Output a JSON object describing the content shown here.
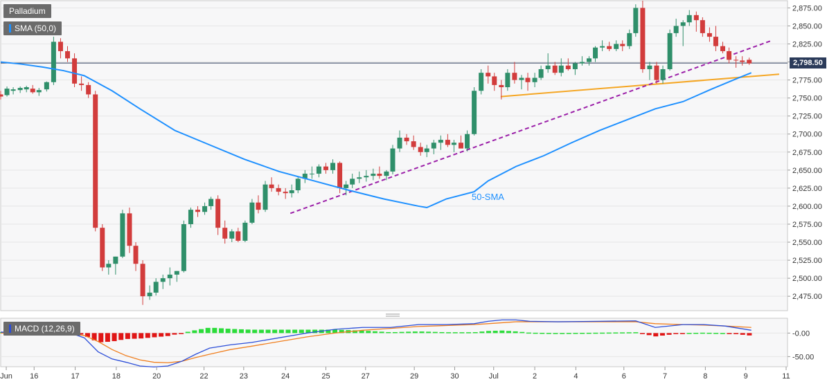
{
  "legend": {
    "instrument": "Palladium",
    "sma": "SMA (50,0)",
    "macd": "MACD (12,26,9)",
    "sma_color": "#1e90ff",
    "macd_color": "#2b4dd8"
  },
  "annotations": {
    "sma_label": "50-SMA",
    "last_price": "2,798.50"
  },
  "chart_data": {
    "type": "candlestick",
    "price_axis": {
      "ylim": [
        2455,
        2885
      ],
      "ticks": [
        "2,875.00",
        "2,850.00",
        "2,825.00",
        "2,800.00",
        "2,775.00",
        "2,750.00",
        "2,725.00",
        "2,700.00",
        "2,675.00",
        "2,650.00",
        "2,625.00",
        "2,600.00",
        "2,575.00",
        "2,550.00",
        "2,525.00",
        "2,500.00",
        "2,475.00"
      ],
      "tick_values": [
        2875,
        2850,
        2825,
        2800,
        2775,
        2750,
        2725,
        2700,
        2675,
        2650,
        2625,
        2600,
        2575,
        2550,
        2525,
        2500,
        2475
      ]
    },
    "x_axis": {
      "range": [
        0,
        1130
      ],
      "labels": [
        "Jun",
        "16",
        "17",
        "18",
        "20",
        "22",
        "23",
        "24",
        "25",
        "27",
        "29",
        "30",
        "Jul",
        "2",
        "4",
        "6",
        "7",
        "8",
        "9",
        "11"
      ],
      "label_positions": [
        8,
        48,
        107,
        166,
        224,
        292,
        349,
        409,
        467,
        524,
        594,
        652,
        708,
        767,
        826,
        895,
        954,
        1012,
        1070,
        1128
      ]
    },
    "candles": [
      [
        0,
        2755,
        2760,
        2748,
        2752
      ],
      [
        9,
        2754,
        2766,
        2752,
        2763
      ],
      [
        18,
        2760,
        2765,
        2755,
        2762
      ],
      [
        28,
        2761,
        2766,
        2757,
        2764
      ],
      [
        37,
        2762,
        2767,
        2758,
        2765
      ],
      [
        46,
        2763,
        2768,
        2756,
        2758
      ],
      [
        55,
        2758,
        2764,
        2753,
        2761
      ],
      [
        66,
        2762,
        2773,
        2759,
        2772
      ],
      [
        76,
        2772,
        2835,
        2768,
        2828
      ],
      [
        86,
        2828,
        2833,
        2805,
        2815
      ],
      [
        96,
        2815,
        2822,
        2800,
        2805
      ],
      [
        106,
        2805,
        2812,
        2765,
        2770
      ],
      [
        116,
        2770,
        2780,
        2760,
        2768
      ],
      [
        126,
        2768,
        2772,
        2750,
        2755
      ],
      [
        136,
        2755,
        2760,
        2565,
        2570
      ],
      [
        146,
        2570,
        2575,
        2510,
        2515
      ],
      [
        155,
        2515,
        2525,
        2505,
        2520
      ],
      [
        165,
        2520,
        2530,
        2505,
        2530
      ],
      [
        175,
        2530,
        2595,
        2528,
        2590
      ],
      [
        185,
        2590,
        2598,
        2535,
        2545
      ],
      [
        194,
        2545,
        2550,
        2510,
        2520
      ],
      [
        204,
        2520,
        2525,
        2463,
        2475
      ],
      [
        214,
        2475,
        2490,
        2470,
        2480
      ],
      [
        223,
        2480,
        2500,
        2476,
        2495
      ],
      [
        233,
        2495,
        2505,
        2485,
        2500
      ],
      [
        243,
        2500,
        2515,
        2490,
        2505
      ],
      [
        253,
        2505,
        2510,
        2495,
        2510
      ],
      [
        263,
        2510,
        2580,
        2508,
        2575
      ],
      [
        273,
        2575,
        2598,
        2570,
        2595
      ],
      [
        283,
        2595,
        2600,
        2585,
        2592
      ],
      [
        293,
        2592,
        2605,
        2588,
        2600
      ],
      [
        302,
        2600,
        2613,
        2595,
        2610
      ],
      [
        312,
        2610,
        2615,
        2560,
        2570
      ],
      [
        322,
        2570,
        2580,
        2548,
        2555
      ],
      [
        332,
        2555,
        2568,
        2550,
        2565
      ],
      [
        341,
        2565,
        2570,
        2550,
        2552
      ],
      [
        351,
        2552,
        2580,
        2550,
        2577
      ],
      [
        361,
        2577,
        2610,
        2575,
        2605
      ],
      [
        370,
        2605,
        2615,
        2590,
        2595
      ],
      [
        380,
        2595,
        2635,
        2592,
        2630
      ],
      [
        389,
        2630,
        2640,
        2620,
        2625
      ],
      [
        399,
        2625,
        2630,
        2615,
        2620
      ],
      [
        409,
        2620,
        2625,
        2610,
        2618
      ],
      [
        418,
        2618,
        2630,
        2612,
        2622
      ],
      [
        427,
        2622,
        2640,
        2618,
        2638
      ],
      [
        437,
        2638,
        2650,
        2632,
        2645
      ],
      [
        447,
        2645,
        2655,
        2638,
        2645
      ],
      [
        457,
        2645,
        2658,
        2640,
        2655
      ],
      [
        467,
        2655,
        2660,
        2645,
        2650
      ],
      [
        477,
        2650,
        2665,
        2645,
        2660
      ],
      [
        487,
        2660,
        2662,
        2618,
        2625
      ],
      [
        496,
        2625,
        2635,
        2615,
        2630
      ],
      [
        505,
        2630,
        2645,
        2625,
        2638
      ],
      [
        515,
        2638,
        2648,
        2632,
        2640
      ],
      [
        525,
        2640,
        2650,
        2634,
        2642
      ],
      [
        535,
        2642,
        2652,
        2636,
        2645
      ],
      [
        544,
        2645,
        2655,
        2638,
        2642
      ],
      [
        554,
        2642,
        2650,
        2636,
        2648
      ],
      [
        563,
        2648,
        2685,
        2644,
        2680
      ],
      [
        573,
        2680,
        2705,
        2675,
        2695
      ],
      [
        583,
        2695,
        2700,
        2685,
        2690
      ],
      [
        593,
        2690,
        2698,
        2678,
        2682
      ],
      [
        603,
        2682,
        2688,
        2670,
        2675
      ],
      [
        612,
        2675,
        2685,
        2668,
        2680
      ],
      [
        622,
        2680,
        2692,
        2672,
        2688
      ],
      [
        632,
        2688,
        2698,
        2678,
        2692
      ],
      [
        642,
        2692,
        2700,
        2682,
        2685
      ],
      [
        651,
        2685,
        2692,
        2675,
        2688
      ],
      [
        661,
        2688,
        2698,
        2680,
        2680
      ],
      [
        670,
        2680,
        2705,
        2676,
        2700
      ],
      [
        680,
        2700,
        2765,
        2698,
        2760
      ],
      [
        690,
        2760,
        2790,
        2755,
        2785
      ],
      [
        700,
        2785,
        2795,
        2770,
        2780
      ],
      [
        709,
        2780,
        2785,
        2760,
        2768
      ],
      [
        719,
        2768,
        2775,
        2748,
        2765
      ],
      [
        728,
        2765,
        2790,
        2760,
        2785
      ],
      [
        738,
        2785,
        2800,
        2770,
        2775
      ],
      [
        748,
        2775,
        2782,
        2762,
        2778
      ],
      [
        757,
        2778,
        2785,
        2760,
        2772
      ],
      [
        767,
        2772,
        2785,
        2765,
        2778
      ],
      [
        776,
        2778,
        2795,
        2775,
        2790
      ],
      [
        786,
        2790,
        2812,
        2785,
        2795
      ],
      [
        796,
        2795,
        2800,
        2782,
        2785
      ],
      [
        805,
        2785,
        2805,
        2780,
        2795
      ],
      [
        815,
        2795,
        2805,
        2788,
        2790
      ],
      [
        825,
        2790,
        2800,
        2782,
        2798
      ],
      [
        835,
        2798,
        2808,
        2795,
        2800
      ],
      [
        845,
        2800,
        2808,
        2795,
        2805
      ],
      [
        854,
        2805,
        2822,
        2800,
        2820
      ],
      [
        864,
        2820,
        2830,
        2815,
        2822
      ],
      [
        874,
        2822,
        2828,
        2815,
        2818
      ],
      [
        884,
        2818,
        2830,
        2815,
        2825
      ],
      [
        893,
        2825,
        2830,
        2815,
        2822
      ],
      [
        903,
        2822,
        2845,
        2818,
        2840
      ],
      [
        912,
        2840,
        2880,
        2835,
        2875
      ],
      [
        922,
        2875,
        2885,
        2785,
        2790
      ],
      [
        932,
        2790,
        2800,
        2775,
        2795
      ],
      [
        942,
        2795,
        2800,
        2770,
        2775
      ],
      [
        951,
        2775,
        2795,
        2770,
        2790
      ],
      [
        961,
        2790,
        2845,
        2788,
        2840
      ],
      [
        970,
        2840,
        2860,
        2835,
        2850
      ],
      [
        980,
        2850,
        2858,
        2822,
        2855
      ],
      [
        989,
        2855,
        2872,
        2850,
        2865
      ],
      [
        999,
        2865,
        2870,
        2842,
        2858
      ],
      [
        1008,
        2858,
        2862,
        2835,
        2840
      ],
      [
        1018,
        2840,
        2848,
        2828,
        2835
      ],
      [
        1027,
        2835,
        2850,
        2815,
        2822
      ],
      [
        1037,
        2822,
        2828,
        2812,
        2815
      ],
      [
        1046,
        2815,
        2820,
        2798,
        2803
      ],
      [
        1056,
        2803,
        2808,
        2792,
        2802
      ],
      [
        1065,
        2802,
        2808,
        2795,
        2800
      ],
      [
        1075,
        2803,
        2806,
        2796,
        2798
      ]
    ],
    "sma_50": {
      "name": "50-SMA",
      "x": [
        0,
        30,
        60,
        90,
        120,
        160,
        200,
        250,
        300,
        350,
        400,
        450,
        500,
        550,
        600,
        612,
        640,
        680,
        700,
        740,
        780,
        820,
        860,
        900,
        940,
        980,
        1020,
        1060,
        1078
      ],
      "values": [
        2800,
        2797,
        2793,
        2788,
        2781,
        2760,
        2735,
        2705,
        2685,
        2665,
        2648,
        2635,
        2622,
        2610,
        2600,
        2598,
        2610,
        2620,
        2635,
        2655,
        2670,
        2688,
        2705,
        2720,
        2735,
        2745,
        2762,
        2778,
        2785
      ]
    },
    "trendline_support": {
      "x": [
        718,
        1118
      ],
      "values": [
        2752,
        2783
      ]
    },
    "trendline_dashed": {
      "x": [
        416,
        1108
      ],
      "values": [
        2590,
        2830
      ]
    },
    "current_price": 2798.5,
    "macd_axis": {
      "ylim": [
        -70,
        30
      ],
      "ticks": [
        "-0.00",
        "-50.00"
      ],
      "tick_values": [
        0,
        -50
      ]
    },
    "macd": {
      "x": [
        0,
        60,
        100,
        120,
        140,
        160,
        180,
        200,
        220,
        240,
        260,
        280,
        300,
        330,
        360,
        400,
        440,
        480,
        520,
        560,
        600,
        640,
        680,
        700,
        720,
        740,
        760,
        800,
        860,
        912,
        940,
        980,
        1010,
        1040,
        1078
      ],
      "values": [
        2,
        2,
        0,
        -10,
        -40,
        -55,
        -62,
        -70,
        -72,
        -70,
        -60,
        -45,
        -32,
        -25,
        -20,
        -10,
        0,
        8,
        12,
        12,
        18,
        18,
        20,
        25,
        28,
        28,
        25,
        24,
        25,
        26,
        12,
        18,
        18,
        15,
        6
      ]
    },
    "signal": {
      "x": [
        0,
        60,
        100,
        120,
        140,
        160,
        180,
        200,
        220,
        240,
        260,
        280,
        300,
        330,
        360,
        400,
        440,
        480,
        520,
        560,
        600,
        640,
        680,
        700,
        720,
        740,
        760,
        800,
        860,
        912,
        940,
        980,
        1010,
        1040,
        1078
      ],
      "values": [
        0,
        0,
        -2,
        -5,
        -18,
        -35,
        -48,
        -57,
        -62,
        -63,
        -60,
        -52,
        -45,
        -35,
        -28,
        -18,
        -8,
        0,
        6,
        10,
        14,
        16,
        18,
        20,
        22,
        24,
        24,
        24,
        24,
        24,
        20,
        18,
        17,
        15,
        12
      ]
    }
  }
}
